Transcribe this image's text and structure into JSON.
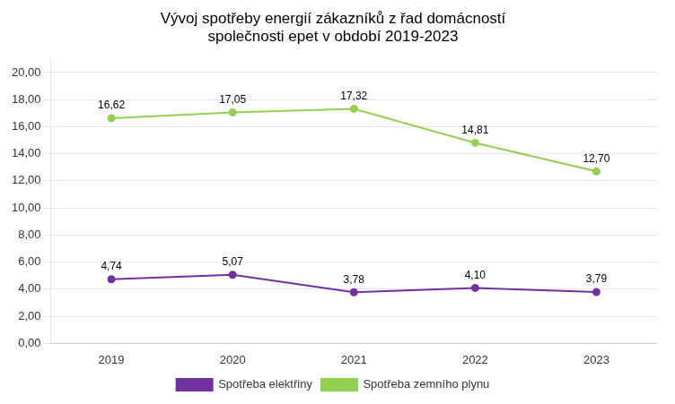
{
  "chart_data": {
    "type": "line",
    "title": "Vývoj spotřeby energií zákazníků z řad domácností\nspolečnosti epet v období 2019-2023",
    "categories": [
      "2019",
      "2020",
      "2021",
      "2022",
      "2023"
    ],
    "series": [
      {
        "name": "Spotřeba elektřiny",
        "color": "#7030A0",
        "values": [
          4.74,
          5.07,
          3.78,
          4.1,
          3.79
        ],
        "value_labels": [
          "4,74",
          "5,07",
          "3,78",
          "4,10",
          "3,79"
        ]
      },
      {
        "name": "Spotřeba zemního plynu",
        "color": "#92D050",
        "values": [
          16.62,
          17.05,
          17.32,
          14.81,
          12.7
        ],
        "value_labels": [
          "16,62",
          "17,05",
          "17,32",
          "14,81",
          "12,70"
        ]
      }
    ],
    "ylim": [
      0,
      21
    ],
    "yticks": [
      {
        "value": 0,
        "label": "0,00"
      },
      {
        "value": 2,
        "label": "2,00"
      },
      {
        "value": 4,
        "label": "4,00"
      },
      {
        "value": 6,
        "label": "6,00"
      },
      {
        "value": 8,
        "label": "8,00"
      },
      {
        "value": 10,
        "label": "10,00"
      },
      {
        "value": 12,
        "label": "12,00"
      },
      {
        "value": 14,
        "label": "14,00"
      },
      {
        "value": 16,
        "label": "16,00"
      },
      {
        "value": 18,
        "label": "18,00"
      },
      {
        "value": 20,
        "label": "20,00"
      }
    ],
    "grid": "y",
    "legend": "bottom",
    "data_labels": true,
    "marker": "circle"
  }
}
